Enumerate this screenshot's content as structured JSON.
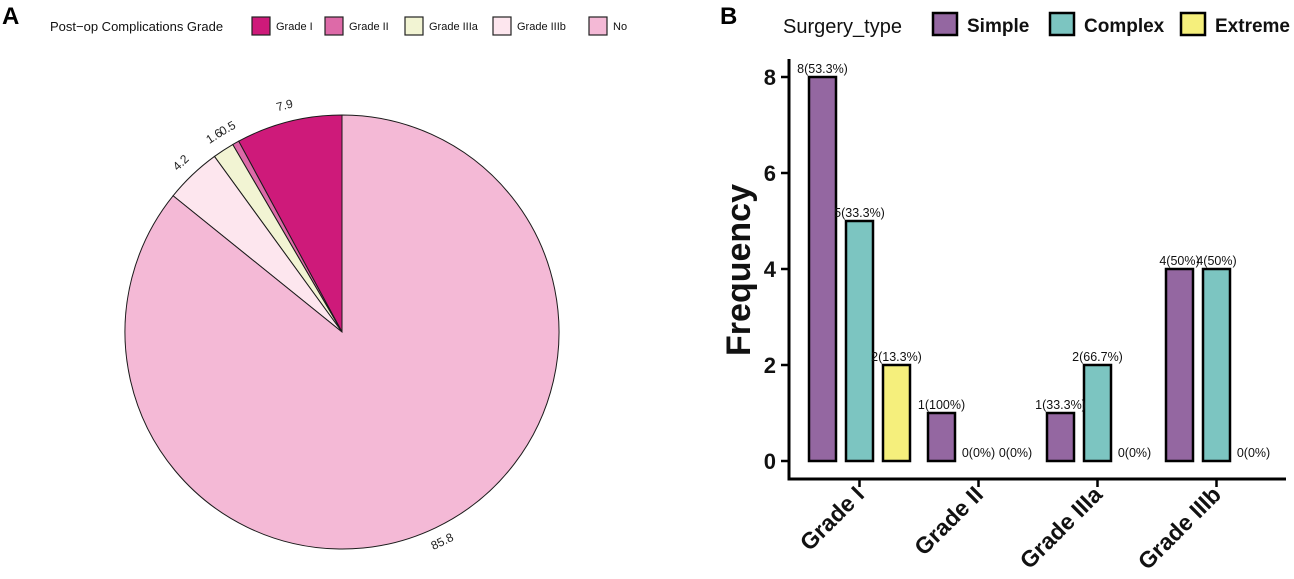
{
  "panels": {
    "a": {
      "tag": "A"
    },
    "b": {
      "tag": "B"
    }
  },
  "chart_data": [
    {
      "type": "pie",
      "panel": "A",
      "legend_title": "Post−op Complications Grade",
      "legend_position": "top",
      "slices": [
        {
          "name": "Grade I",
          "value": 7.9,
          "label": "7.9",
          "color": "#CE1A7A"
        },
        {
          "name": "Grade II",
          "value": 0.5,
          "label": "0.5",
          "color": "#DD6AA8"
        },
        {
          "name": "Grade IIIa",
          "value": 1.6,
          "label": "1.6",
          "color": "#F2F4D3"
        },
        {
          "name": "Grade IIIb",
          "value": 4.2,
          "label": "4.2",
          "color": "#FDE6EE"
        },
        {
          "name": "No",
          "value": 85.8,
          "label": "85.8",
          "color": "#F4B9D6"
        }
      ]
    },
    {
      "type": "bar",
      "panel": "B",
      "legend_title": "Surgery_type",
      "legend_position": "top",
      "categories": [
        "Grade I",
        "Grade II",
        "Grade IIIa",
        "Grade IIIb"
      ],
      "series": [
        {
          "name": "Simple",
          "color": "#9467A1",
          "values": [
            8,
            1,
            1,
            4
          ],
          "labels": [
            "8(53.3%)",
            "1(100%)",
            "1(33.3%)",
            "4(50%)"
          ]
        },
        {
          "name": "Complex",
          "color": "#7CC5C1",
          "values": [
            5,
            0,
            2,
            4
          ],
          "labels": [
            "5(33.3%)",
            "0(0%)",
            "2(66.7%)",
            "4(50%)"
          ]
        },
        {
          "name": "Extreme",
          "color": "#F5EF7C",
          "values": [
            2,
            0,
            0,
            0
          ],
          "labels": [
            "2(13.3%)",
            "0(0%)",
            "0(0%)",
            "0(0%)"
          ]
        }
      ],
      "ylabel": "Frequency",
      "xlabel": "",
      "ylim": [
        0,
        8.4
      ],
      "yticks": [
        0,
        2,
        4,
        6,
        8
      ],
      "grid": false
    }
  ]
}
